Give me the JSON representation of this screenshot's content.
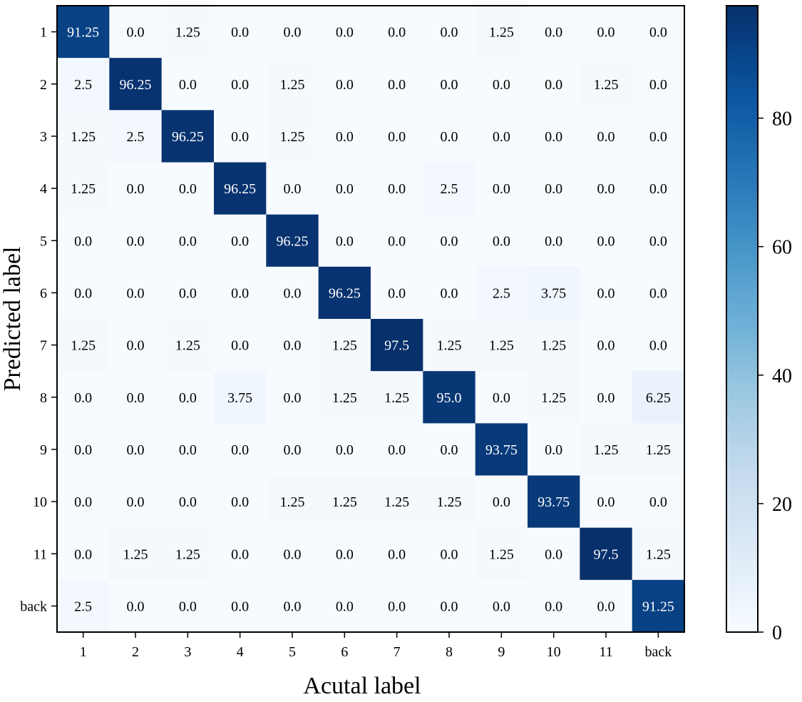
{
  "chart_data": {
    "type": "heatmap",
    "title": "",
    "xlabel": "Acutal label",
    "ylabel": "Predicted label",
    "x_categories": [
      "1",
      "2",
      "3",
      "4",
      "5",
      "6",
      "7",
      "8",
      "9",
      "10",
      "11",
      "back"
    ],
    "y_categories": [
      "1",
      "2",
      "3",
      "4",
      "5",
      "6",
      "7",
      "8",
      "9",
      "10",
      "11",
      "back"
    ],
    "values": [
      [
        91.25,
        0.0,
        1.25,
        0.0,
        0.0,
        0.0,
        0.0,
        0.0,
        1.25,
        0.0,
        0.0,
        0.0
      ],
      [
        2.5,
        96.25,
        0.0,
        0.0,
        1.25,
        0.0,
        0.0,
        0.0,
        0.0,
        0.0,
        1.25,
        0.0
      ],
      [
        1.25,
        2.5,
        96.25,
        0.0,
        1.25,
        0.0,
        0.0,
        0.0,
        0.0,
        0.0,
        0.0,
        0.0
      ],
      [
        1.25,
        0.0,
        0.0,
        96.25,
        0.0,
        0.0,
        0.0,
        2.5,
        0.0,
        0.0,
        0.0,
        0.0
      ],
      [
        0.0,
        0.0,
        0.0,
        0.0,
        96.25,
        0.0,
        0.0,
        0.0,
        0.0,
        0.0,
        0.0,
        0.0
      ],
      [
        0.0,
        0.0,
        0.0,
        0.0,
        0.0,
        96.25,
        0.0,
        0.0,
        2.5,
        3.75,
        0.0,
        0.0
      ],
      [
        1.25,
        0.0,
        1.25,
        0.0,
        0.0,
        1.25,
        97.5,
        1.25,
        1.25,
        1.25,
        0.0,
        0.0
      ],
      [
        0.0,
        0.0,
        0.0,
        3.75,
        0.0,
        1.25,
        1.25,
        95.0,
        0.0,
        1.25,
        0.0,
        6.25
      ],
      [
        0.0,
        0.0,
        0.0,
        0.0,
        0.0,
        0.0,
        0.0,
        0.0,
        93.75,
        0.0,
        1.25,
        1.25
      ],
      [
        0.0,
        0.0,
        0.0,
        0.0,
        1.25,
        1.25,
        1.25,
        1.25,
        0.0,
        93.75,
        0.0,
        0.0
      ],
      [
        0.0,
        1.25,
        1.25,
        0.0,
        0.0,
        0.0,
        0.0,
        0.0,
        1.25,
        0.0,
        97.5,
        1.25
      ],
      [
        2.5,
        0.0,
        0.0,
        0.0,
        0.0,
        0.0,
        0.0,
        0.0,
        0.0,
        0.0,
        0.0,
        91.25
      ]
    ],
    "value_format": "one-decimal minimum",
    "colormap": "Blues",
    "colorbar": {
      "range": [
        0,
        97.5
      ],
      "ticks": [
        0,
        20,
        40,
        60,
        80
      ]
    },
    "grid": false,
    "text_colors": {
      "light_cell": "#000000",
      "dark_cell": "#ffffff"
    }
  }
}
